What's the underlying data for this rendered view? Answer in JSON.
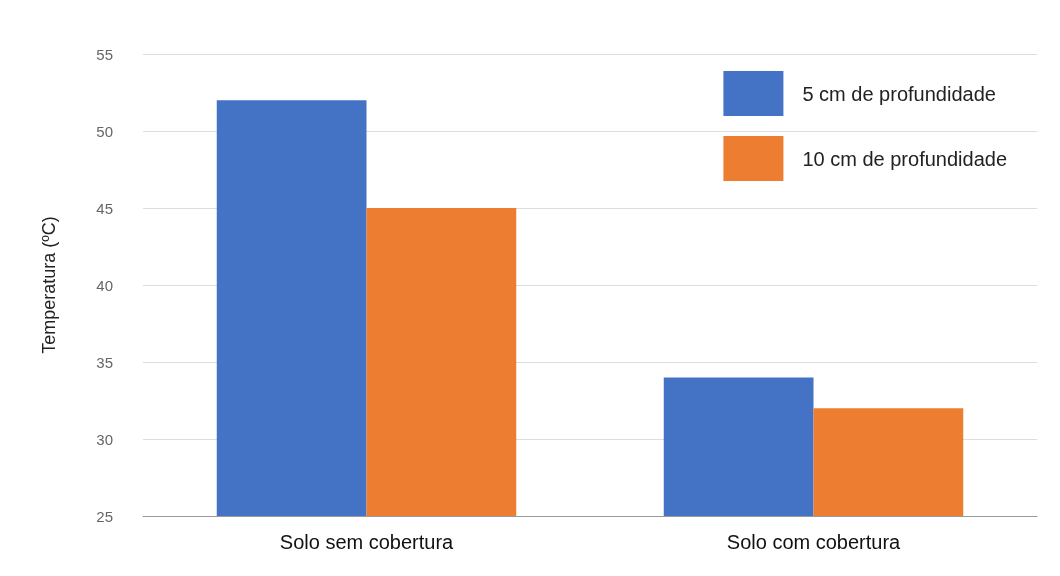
{
  "chart_data": {
    "type": "bar",
    "ylabel": "Temperatura (ºC)",
    "categories": [
      "Solo sem cobertura",
      "Solo com cobertura"
    ],
    "series": [
      {
        "name": "5 cm de profundidade",
        "color": "#4472c4",
        "values": [
          52,
          34
        ]
      },
      {
        "name": "10 cm de profundidade",
        "color": "#ed7d31",
        "values": [
          45,
          32
        ]
      }
    ],
    "ylim": [
      25,
      55
    ],
    "yticks": [
      25,
      30,
      35,
      40,
      45,
      50,
      55
    ],
    "grid": "y",
    "legend": "top right"
  }
}
